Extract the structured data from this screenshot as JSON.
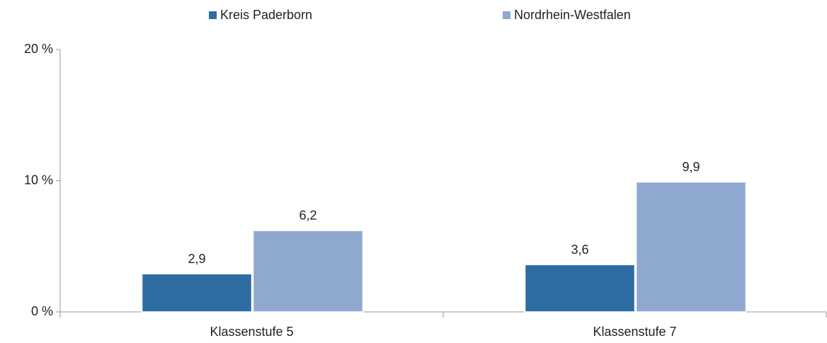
{
  "chart_data": {
    "type": "bar",
    "categories": [
      "Klassenstufe 5",
      "Klassenstufe 7"
    ],
    "series": [
      {
        "name": "Kreis Paderborn",
        "color": "#2e6ca4",
        "values": [
          2.9,
          3.6
        ],
        "value_labels": [
          "2,9",
          "3,6"
        ]
      },
      {
        "name": "Nordrhein-Westfalen",
        "color": "#8fa8d0",
        "values": [
          6.2,
          9.9
        ],
        "value_labels": [
          "6,2",
          "9,9"
        ]
      }
    ],
    "ylim": [
      0,
      20
    ],
    "yticks": [
      {
        "value": 0,
        "label": "0 %"
      },
      {
        "value": 10,
        "label": "10 %"
      },
      {
        "value": 20,
        "label": "20 %"
      }
    ],
    "legend": "top"
  }
}
